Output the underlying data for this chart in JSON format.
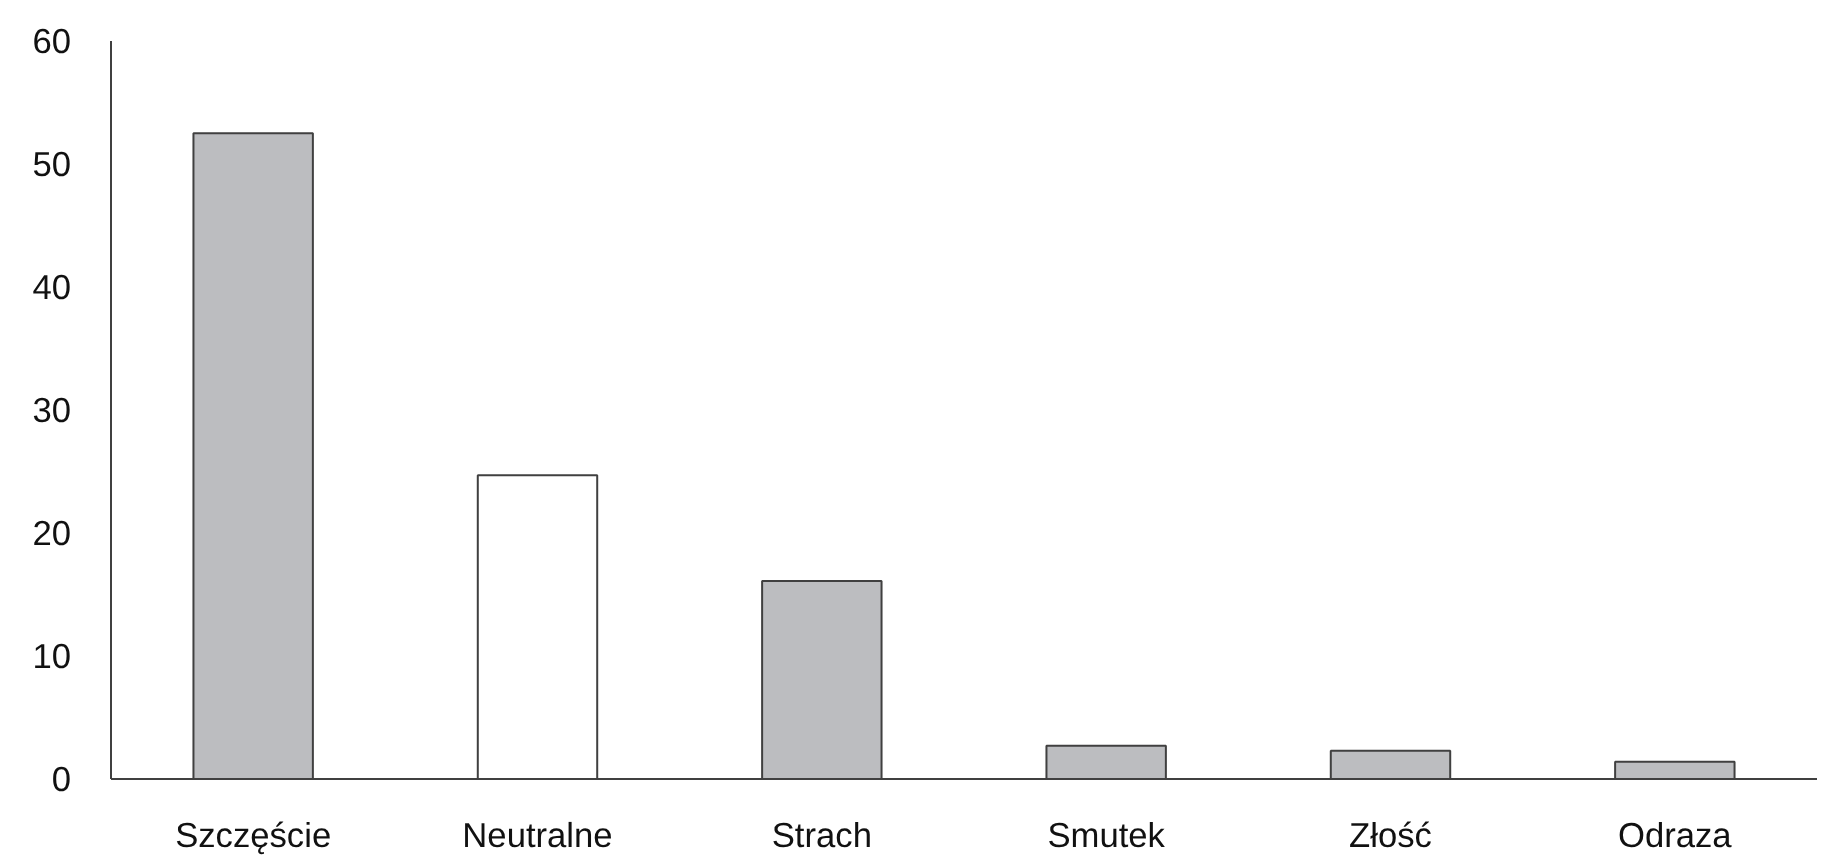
{
  "chart_data": {
    "type": "bar",
    "categories": [
      "Szczęście",
      "Neutralne",
      "Strach",
      "Smutek",
      "Złość",
      "Odraza"
    ],
    "values": [
      52.5,
      24.7,
      16.1,
      2.7,
      2.3,
      1.4
    ],
    "colors": [
      "#bcbdc0",
      "#ffffff",
      "#bcbdc0",
      "#bcbdc0",
      "#bcbdc0",
      "#bcbdc0"
    ],
    "ylim": [
      0,
      60
    ],
    "yticks": [
      0,
      10,
      20,
      30,
      40,
      50,
      60
    ],
    "grid": false
  }
}
